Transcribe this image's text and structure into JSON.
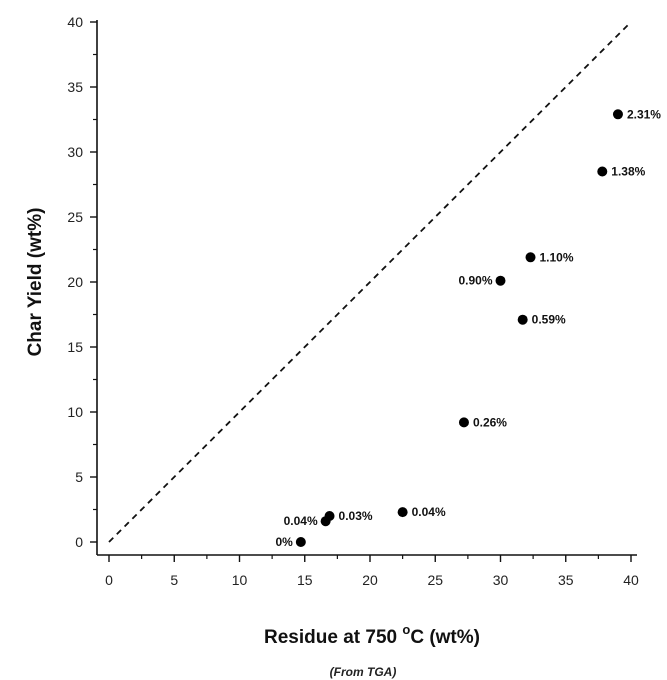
{
  "chart_data": {
    "type": "scatter",
    "xlabel_main": "Residue at 750 ",
    "xlabel_degree": "o",
    "xlabel_unit": "C (wt%)",
    "xlabel_note": "(From TGA)",
    "ylabel": "Char Yield (wt%)",
    "xlim": [
      0,
      40
    ],
    "ylim": [
      0,
      40
    ],
    "xticks": [
      0,
      5,
      10,
      15,
      20,
      25,
      30,
      35,
      40
    ],
    "yticks": [
      0,
      5,
      10,
      15,
      20,
      25,
      30,
      35,
      40
    ],
    "reference_line": {
      "style": "dashed",
      "x": [
        0,
        40
      ],
      "y": [
        0,
        40
      ]
    },
    "points": [
      {
        "x": 14.7,
        "y": 0.0,
        "label": "0%",
        "label_pos": "left"
      },
      {
        "x": 16.6,
        "y": 1.6,
        "label": "0.04%",
        "label_pos": "left"
      },
      {
        "x": 16.9,
        "y": 2.0,
        "label": "0.03%",
        "label_pos": "right"
      },
      {
        "x": 22.5,
        "y": 2.3,
        "label": "0.04%",
        "label_pos": "right"
      },
      {
        "x": 27.2,
        "y": 9.2,
        "label": "0.26%",
        "label_pos": "right"
      },
      {
        "x": 30.0,
        "y": 20.1,
        "label": "0.90%",
        "label_pos": "left"
      },
      {
        "x": 32.3,
        "y": 21.9,
        "label": "1.10%",
        "label_pos": "right"
      },
      {
        "x": 31.7,
        "y": 17.1,
        "label": "0.59%",
        "label_pos": "right"
      },
      {
        "x": 37.8,
        "y": 28.5,
        "label": "1.38%",
        "label_pos": "right"
      },
      {
        "x": 39.0,
        "y": 32.9,
        "label": "2.31%",
        "label_pos": "right"
      }
    ]
  }
}
